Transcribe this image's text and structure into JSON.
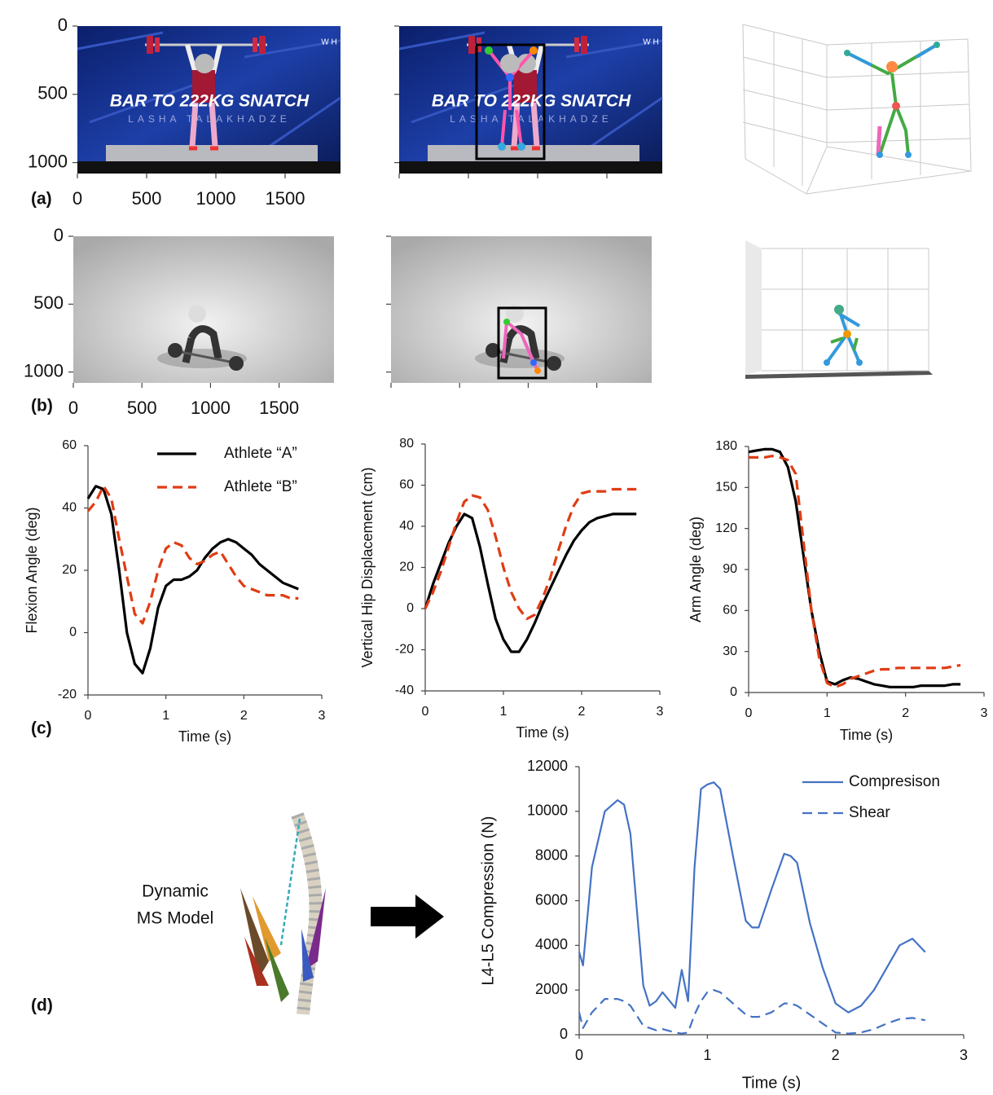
{
  "panel_labels": [
    "(a)",
    "(b)",
    "(c)",
    "(d)"
  ],
  "model_label": [
    "Dynamic",
    "MS Model"
  ],
  "chart_data": [
    {
      "type": "image",
      "caption": "BAR TO 222KG SNATCH",
      "subcaption": "LASHA TALAKHADZE",
      "logo": "W H",
      "xlim": [
        0,
        1900
      ],
      "ylim": [
        0,
        1080
      ],
      "xticks": [
        0,
        500,
        1000,
        1500
      ],
      "yticks": [
        0,
        500,
        1000
      ]
    },
    {
      "type": "image",
      "xlim": [
        0,
        1900
      ],
      "ylim": [
        0,
        1080
      ],
      "xticks": [
        0,
        500,
        1000,
        1500
      ],
      "yticks": [
        0,
        500,
        1000
      ]
    },
    {
      "type": "line",
      "xlabel": "Time (s)",
      "ylabel": "Flexion Angle (deg)",
      "xlim": [
        0,
        3
      ],
      "xticks": [
        0,
        1,
        2,
        3
      ],
      "ylim": [
        -20,
        60
      ],
      "yticks": [
        -20,
        0,
        20,
        40,
        60
      ],
      "x": [
        0,
        0.1,
        0.2,
        0.3,
        0.4,
        0.5,
        0.6,
        0.7,
        0.8,
        0.9,
        1.0,
        1.1,
        1.2,
        1.3,
        1.4,
        1.5,
        1.6,
        1.7,
        1.8,
        1.9,
        2.0,
        2.1,
        2.2,
        2.3,
        2.4,
        2.5,
        2.6,
        2.7
      ],
      "series": [
        {
          "name": "Athlete “A”",
          "color": "#000000",
          "line_style": "solid",
          "values": [
            43,
            47,
            46,
            38,
            20,
            0,
            -10,
            -13,
            -5,
            8,
            15,
            17,
            17,
            18,
            20,
            24,
            27,
            29,
            30,
            29,
            27,
            25,
            22,
            20,
            18,
            16,
            15,
            14
          ]
        },
        {
          "name": "Athlete “B”",
          "color": "#e03c14",
          "line_style": "dashed",
          "values": [
            39,
            42,
            47,
            43,
            30,
            18,
            6,
            3,
            10,
            20,
            27,
            29,
            28,
            24,
            22,
            23,
            25,
            26,
            22,
            18,
            15,
            14,
            13,
            12,
            12,
            12,
            11,
            11
          ]
        }
      ]
    },
    {
      "type": "line",
      "xlabel": "Time (s)",
      "ylabel": "Vertical Hip Displacement (cm)",
      "xlim": [
        0,
        3
      ],
      "xticks": [
        0,
        1,
        2,
        3
      ],
      "ylim": [
        -40,
        80
      ],
      "yticks": [
        -40,
        -20,
        0,
        20,
        40,
        60,
        80
      ],
      "x": [
        0,
        0.1,
        0.2,
        0.3,
        0.4,
        0.5,
        0.6,
        0.7,
        0.8,
        0.9,
        1.0,
        1.1,
        1.2,
        1.3,
        1.4,
        1.5,
        1.6,
        1.7,
        1.8,
        1.9,
        2.0,
        2.1,
        2.2,
        2.3,
        2.4,
        2.5,
        2.6,
        2.7
      ],
      "series": [
        {
          "color": "#000000",
          "line_style": "solid",
          "values": [
            0,
            12,
            22,
            32,
            40,
            46,
            44,
            30,
            12,
            -5,
            -15,
            -21,
            -21,
            -15,
            -7,
            2,
            10,
            18,
            26,
            33,
            38,
            42,
            44,
            45,
            46,
            46,
            46,
            46
          ]
        },
        {
          "color": "#e03c14",
          "line_style": "dashed",
          "values": [
            0,
            8,
            18,
            30,
            42,
            52,
            55,
            54,
            48,
            35,
            20,
            8,
            0,
            -5,
            -3,
            5,
            15,
            28,
            40,
            50,
            56,
            57,
            57,
            57,
            58,
            58,
            58,
            58
          ]
        }
      ]
    },
    {
      "type": "line",
      "xlabel": "Time (s)",
      "ylabel": "Arm Angle (deg)",
      "xlim": [
        0,
        3
      ],
      "xticks": [
        0,
        1,
        2,
        3
      ],
      "ylim": [
        0,
        180
      ],
      "yticks": [
        0,
        30,
        60,
        90,
        120,
        150,
        180
      ],
      "x": [
        0,
        0.1,
        0.2,
        0.3,
        0.4,
        0.5,
        0.6,
        0.7,
        0.8,
        0.9,
        1.0,
        1.1,
        1.2,
        1.3,
        1.4,
        1.5,
        1.6,
        1.7,
        1.8,
        1.9,
        2.0,
        2.1,
        2.2,
        2.3,
        2.4,
        2.5,
        2.6,
        2.7
      ],
      "series": [
        {
          "color": "#000000",
          "line_style": "solid",
          "values": [
            176,
            177,
            178,
            178,
            176,
            165,
            140,
            100,
            60,
            30,
            8,
            6,
            9,
            11,
            10,
            8,
            6,
            5,
            4,
            4,
            4,
            4,
            5,
            5,
            5,
            5,
            6,
            6
          ]
        },
        {
          "color": "#e03c14",
          "line_style": "dashed",
          "values": [
            172,
            172,
            172,
            173,
            172,
            170,
            160,
            110,
            60,
            25,
            7,
            4,
            6,
            10,
            12,
            14,
            16,
            17,
            17,
            18,
            18,
            18,
            18,
            18,
            18,
            18,
            19,
            20
          ]
        }
      ]
    },
    {
      "type": "line",
      "xlabel": "Time (s)",
      "ylabel": "L4-L5 Compression (N)",
      "xlim": [
        0,
        3
      ],
      "xticks": [
        0,
        1,
        2,
        3
      ],
      "ylim": [
        0,
        12000
      ],
      "yticks": [
        0,
        2000,
        4000,
        6000,
        8000,
        10000,
        12000
      ],
      "x": [
        0,
        0.03,
        0.1,
        0.2,
        0.3,
        0.35,
        0.4,
        0.5,
        0.55,
        0.6,
        0.65,
        0.75,
        0.8,
        0.85,
        0.9,
        0.95,
        1.0,
        1.05,
        1.1,
        1.2,
        1.3,
        1.35,
        1.4,
        1.5,
        1.6,
        1.65,
        1.7,
        1.8,
        1.9,
        2.0,
        2.1,
        2.2,
        2.3,
        2.4,
        2.5,
        2.6,
        2.7
      ],
      "series": [
        {
          "name": "Compresison",
          "color": "#4472c4",
          "line_style": "solid",
          "values": [
            3700,
            3100,
            7500,
            10000,
            10500,
            10300,
            9000,
            2200,
            1300,
            1500,
            1900,
            1200,
            2900,
            1500,
            7500,
            11000,
            11200,
            11300,
            11000,
            8000,
            5100,
            4800,
            4800,
            6500,
            8100,
            8000,
            7700,
            5000,
            3000,
            1400,
            1000,
            1300,
            2000,
            3000,
            4000,
            4300,
            3700
          ]
        },
        {
          "name": "Shear",
          "color": "#4472c4",
          "line_style": "dashed",
          "values": [
            1000,
            300,
            1000,
            1600,
            1600,
            1500,
            1300,
            400,
            300,
            200,
            250,
            100,
            50,
            100,
            900,
            1500,
            1900,
            2000,
            1900,
            1400,
            900,
            800,
            800,
            1000,
            1400,
            1400,
            1300,
            900,
            500,
            100,
            50,
            100,
            250,
            500,
            700,
            750,
            650
          ]
        }
      ]
    }
  ]
}
